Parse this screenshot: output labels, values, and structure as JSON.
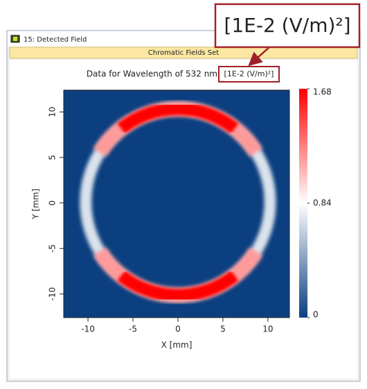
{
  "window": {
    "title": "15: Detected Field",
    "tab": "Chromatic Fields Set"
  },
  "chart_data": {
    "type": "heatmap",
    "title": "Data for Wavelength of 532 nm",
    "unit": "[1E-2 (V/m)²]",
    "x_label": "X [mm]",
    "y_label": "Y [mm]",
    "xlim": [
      -12.7,
      12.4
    ],
    "ylim": [
      -12.6,
      12.4
    ],
    "xticks": [
      -10,
      -5,
      0,
      5,
      10
    ],
    "yticks": [
      -10,
      -5,
      0,
      5,
      10
    ],
    "colorbar": {
      "lim": [
        0,
        1.68
      ],
      "ticks": [
        0,
        0.84,
        1.68
      ],
      "colors": [
        "#0b3f80",
        "#ffffff",
        "#ff0000"
      ]
    }
  }
}
